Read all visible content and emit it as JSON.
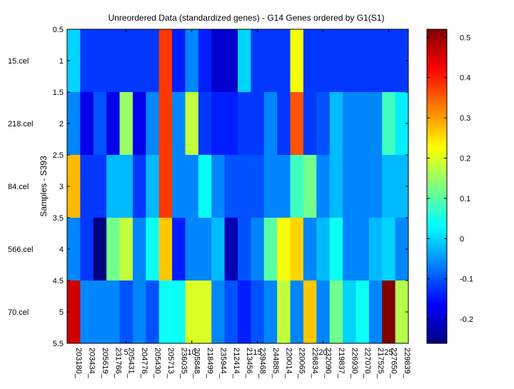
{
  "chart_data": {
    "type": "heatmap",
    "title": "Unreordered Data (standardized genes) - G14 Genes ordered by G1(S1)",
    "ylabel": "Samples - S393",
    "xlabel": "",
    "y_ticks": [
      "0.5",
      "1",
      "1.5",
      "2",
      "2.5",
      "3",
      "3.5",
      "4",
      "4.5",
      "5",
      "5.5"
    ],
    "x_ticks": [
      "5",
      "10",
      "15",
      "20",
      "25"
    ],
    "row_labels": [
      "15.cel",
      "218.cel",
      "84.cel",
      "566.cel",
      "70.cel"
    ],
    "column_labels": [
      "203180_",
      "203434_",
      "205619_",
      "231766_",
      "205431_",
      "204776_",
      "205430_",
      "205713_",
      "236035_",
      "205848_",
      "218499_",
      "235944_",
      "212414_",
      "213456_",
      "239468_",
      "244885_",
      "220014_",
      "220065_",
      "226834_",
      "232090_",
      "219837_",
      "226930_",
      "227070_",
      "217525_",
      "227650_",
      "229839_"
    ],
    "colorbar": {
      "range": [
        -0.26,
        0.52
      ],
      "ticks": [
        "-0.2",
        "-0.1",
        "0",
        "0.1",
        "0.2",
        "0.3",
        "0.4",
        "0.5"
      ],
      "colormap": "jet"
    },
    "values": [
      [
        0.0,
        -0.12,
        -0.12,
        -0.12,
        -0.12,
        -0.12,
        -0.12,
        0.38,
        -0.14,
        -0.06,
        -0.14,
        -0.2,
        -0.2,
        0.0,
        -0.12,
        -0.12,
        -0.12,
        0.22,
        -0.12,
        -0.12,
        -0.12,
        -0.12,
        -0.12,
        -0.12,
        -0.12,
        -0.12
      ],
      [
        -0.06,
        -0.18,
        -0.1,
        -0.18,
        0.15,
        -0.18,
        -0.06,
        0.38,
        -0.06,
        0.18,
        -0.12,
        -0.14,
        -0.14,
        -0.12,
        -0.12,
        -0.06,
        -0.12,
        0.36,
        -0.12,
        -0.1,
        -0.02,
        -0.06,
        -0.06,
        -0.06,
        0.08,
        0.02
      ],
      [
        0.28,
        -0.12,
        -0.12,
        -0.02,
        -0.02,
        -0.12,
        -0.02,
        0.38,
        -0.06,
        -0.06,
        0.04,
        -0.06,
        -0.1,
        -0.1,
        -0.1,
        -0.06,
        -0.06,
        0.08,
        0.12,
        -0.06,
        -0.02,
        -0.06,
        -0.06,
        -0.06,
        -0.02,
        -0.02
      ],
      [
        -0.06,
        -0.12,
        -0.26,
        0.12,
        0.18,
        -0.06,
        0.04,
        0.27,
        -0.14,
        -0.06,
        -0.06,
        -0.02,
        -0.22,
        -0.1,
        -0.06,
        0.1,
        0.22,
        0.26,
        -0.06,
        -0.02,
        0.04,
        -0.06,
        -0.06,
        -0.02,
        0.0,
        -0.06
      ],
      [
        0.46,
        -0.06,
        -0.06,
        -0.06,
        -0.1,
        -0.06,
        -0.1,
        0.04,
        0.04,
        0.2,
        0.2,
        -0.06,
        -0.1,
        -0.14,
        -0.1,
        -0.06,
        0.18,
        -0.06,
        0.27,
        -0.06,
        0.12,
        0.0,
        0.04,
        -0.06,
        0.52,
        0.17
      ]
    ]
  }
}
